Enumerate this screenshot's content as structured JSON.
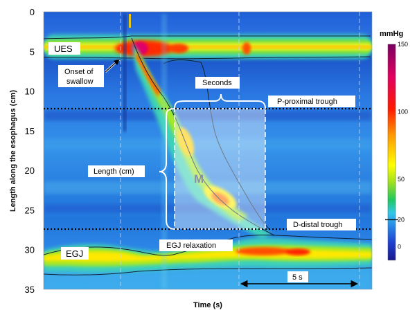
{
  "chart_data": {
    "type": "heatmap",
    "title": "",
    "xlabel": "Time (s)",
    "ylabel": "Length along the esophagus (cm)",
    "ylim": [
      0,
      35
    ],
    "y_ticks": [
      "0",
      "5",
      "10",
      "15",
      "20",
      "25",
      "30",
      "35"
    ],
    "colorbar": {
      "unit": "mmHg",
      "range": [
        -10,
        150
      ],
      "tick_labels": [
        "150",
        "100",
        "50",
        "20",
        "0"
      ],
      "tick_values": [
        150,
        100,
        50,
        20,
        0
      ],
      "contour_value": 20
    },
    "annotations": {
      "ues": "UES",
      "egj": "EGJ",
      "onset": [
        "Onset of",
        "swallow"
      ],
      "seconds": "Seconds",
      "p_trough": "P-proximal trough",
      "length": "Length (cm)",
      "d_trough": "D-distal trough",
      "egj_relax": "EGJ relaxation",
      "five_s": "5 s",
      "m_label": "M"
    },
    "landmarks_cm": {
      "ues_center": 5,
      "egj_center": 30,
      "proximal_trough": 12.3,
      "distal_trough": 27.4
    }
  }
}
